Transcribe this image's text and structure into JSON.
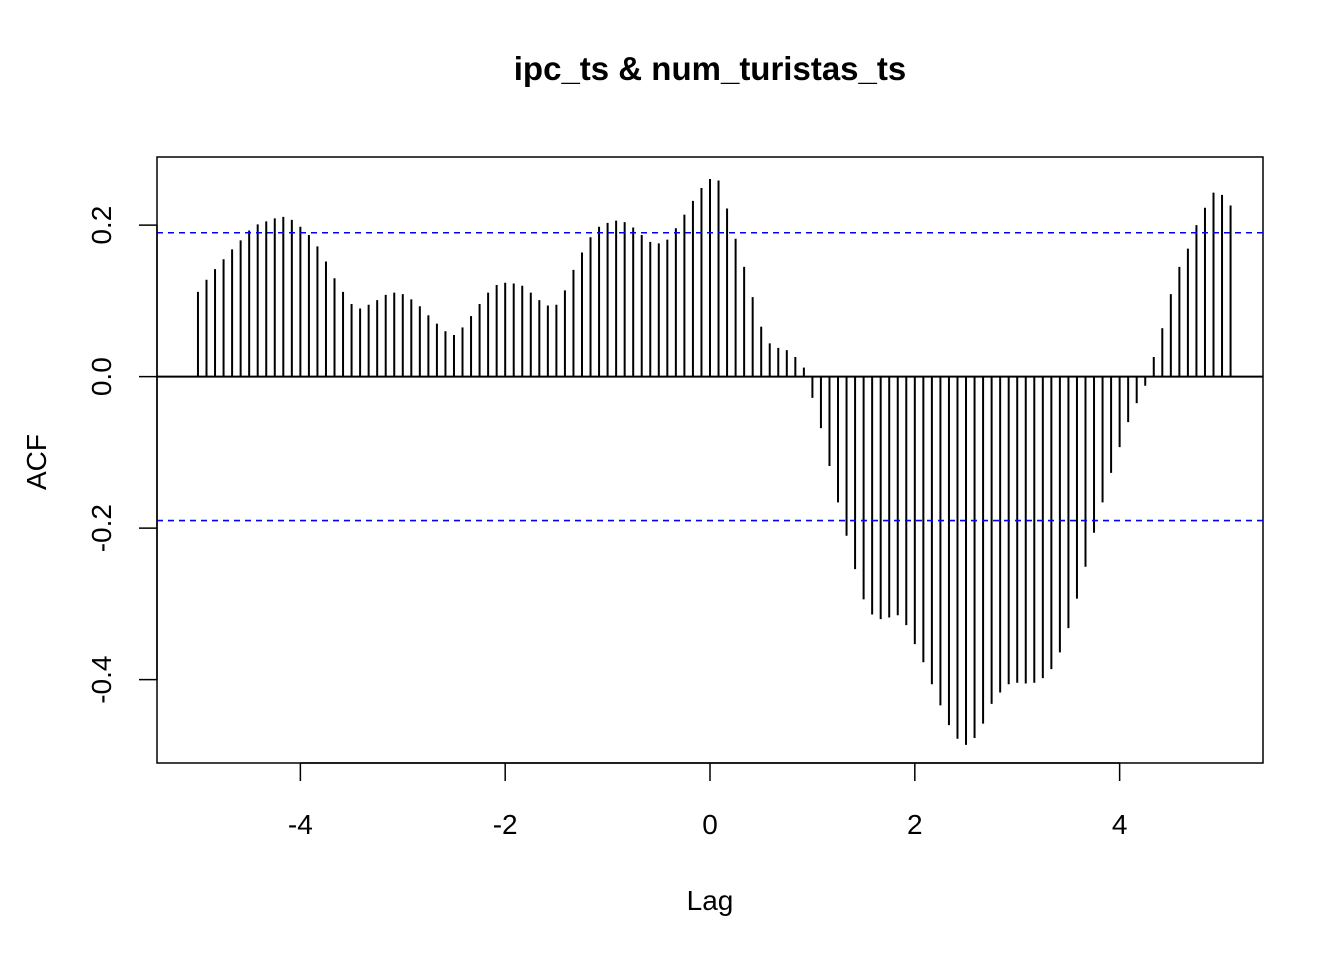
{
  "chart_data": {
    "type": "bar",
    "title": "ipc_ts & num_turistas_ts",
    "xlabel": "Lag",
    "ylabel": "ACF",
    "xlim": [
      -5.4,
      5.4
    ],
    "ylim": [
      -0.51,
      0.29
    ],
    "x_ticks": [
      {
        "value": -4,
        "label": "-4"
      },
      {
        "value": -2,
        "label": "-2"
      },
      {
        "value": 0,
        "label": "0"
      },
      {
        "value": 2,
        "label": "2"
      },
      {
        "value": 4,
        "label": "4"
      }
    ],
    "y_ticks": [
      {
        "value": 0.2,
        "label": "0.2"
      },
      {
        "value": 0.0,
        "label": "0.0"
      },
      {
        "value": -0.2,
        "label": "-0.2"
      },
      {
        "value": -0.4,
        "label": "-0.4"
      }
    ],
    "ci": 0.19,
    "colors": {
      "bars": "#000000",
      "ci": "#0000ff",
      "zero": "#000000",
      "frame": "#000000"
    },
    "lag_start": -5.0,
    "lag_step": 0.08333333,
    "values": [
      0.112,
      0.128,
      0.142,
      0.155,
      0.168,
      0.18,
      0.193,
      0.201,
      0.205,
      0.209,
      0.211,
      0.207,
      0.198,
      0.187,
      0.172,
      0.152,
      0.13,
      0.112,
      0.096,
      0.09,
      0.095,
      0.101,
      0.108,
      0.111,
      0.109,
      0.102,
      0.093,
      0.081,
      0.07,
      0.06,
      0.055,
      0.065,
      0.08,
      0.096,
      0.111,
      0.121,
      0.124,
      0.123,
      0.12,
      0.111,
      0.101,
      0.094,
      0.095,
      0.114,
      0.141,
      0.164,
      0.184,
      0.198,
      0.203,
      0.206,
      0.204,
      0.197,
      0.187,
      0.178,
      0.176,
      0.181,
      0.196,
      0.214,
      0.232,
      0.249,
      0.261,
      0.259,
      0.222,
      0.182,
      0.145,
      0.105,
      0.066,
      0.044,
      0.038,
      0.035,
      0.026,
      0.012,
      -0.028,
      -0.068,
      -0.118,
      -0.166,
      -0.21,
      -0.254,
      -0.294,
      -0.314,
      -0.32,
      -0.318,
      -0.315,
      -0.328,
      -0.353,
      -0.377,
      -0.406,
      -0.434,
      -0.46,
      -0.478,
      -0.486,
      -0.477,
      -0.458,
      -0.432,
      -0.417,
      -0.406,
      -0.404,
      -0.405,
      -0.404,
      -0.398,
      -0.386,
      -0.364,
      -0.332,
      -0.293,
      -0.251,
      -0.206,
      -0.166,
      -0.127,
      -0.093,
      -0.06,
      -0.035,
      -0.012,
      0.026,
      0.064,
      0.109,
      0.145,
      0.169,
      0.2,
      0.223,
      0.243,
      0.24,
      0.226
    ]
  }
}
